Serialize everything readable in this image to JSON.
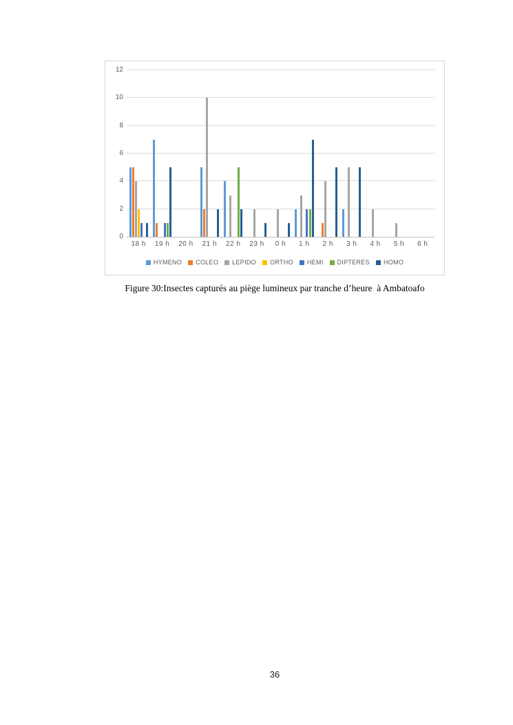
{
  "page": {
    "number": "36",
    "background": "#ffffff"
  },
  "figure": {
    "caption": "Figure 30:Insectes capturés au piège lumineux par tranche d’heure  à Ambatoafo"
  },
  "chart_data": {
    "type": "bar",
    "title": "",
    "xlabel": "",
    "ylabel": "",
    "categories": [
      "18 h",
      "19 h",
      "20 h",
      "21 h",
      "22 h",
      "23 h",
      "0 h",
      "1 h",
      "2 h",
      "3 h",
      "4 h",
      "5 h",
      "6 h"
    ],
    "series": [
      {
        "name": "HYMENO",
        "color": "#5B9BD5",
        "values": [
          5,
          7,
          0,
          5,
          4,
          0,
          0,
          2,
          0,
          2,
          0,
          0,
          0
        ]
      },
      {
        "name": "COLEO",
        "color": "#ED7D31",
        "values": [
          5,
          1,
          0,
          2,
          0,
          0,
          0,
          0,
          1,
          0,
          0,
          0,
          0
        ]
      },
      {
        "name": "LEPIDO",
        "color": "#A5A5A5",
        "values": [
          4,
          0,
          0,
          10,
          3,
          2,
          2,
          3,
          4,
          5,
          2,
          1,
          0
        ]
      },
      {
        "name": "ORTHO",
        "color": "#FFC000",
        "values": [
          2,
          0,
          0,
          0,
          0,
          0,
          0,
          0,
          0,
          0,
          0,
          0,
          0
        ]
      },
      {
        "name": "HEMI",
        "color": "#4472C4",
        "values": [
          1,
          1,
          0,
          0,
          0,
          0,
          0,
          2,
          0,
          0,
          0,
          0,
          0
        ]
      },
      {
        "name": "DIPTERES",
        "color": "#70AD47",
        "values": [
          0,
          1,
          0,
          0,
          5,
          0,
          0,
          2,
          0,
          0,
          0,
          0,
          0
        ]
      },
      {
        "name": "HOMO",
        "color": "#255E91",
        "values": [
          1,
          5,
          0,
          2,
          2,
          1,
          1,
          7,
          5,
          5,
          0,
          0,
          0
        ]
      }
    ],
    "ylim": [
      0,
      12
    ],
    "yticks": [
      0,
      2,
      4,
      6,
      8,
      10,
      12
    ],
    "grid": true,
    "legend_position": "bottom",
    "axis_text_color": "#595959",
    "gridline_color": "#dcdcdc",
    "axis_line_color": "#bfbfbf",
    "frame_border_color": "#d6d6d6"
  }
}
